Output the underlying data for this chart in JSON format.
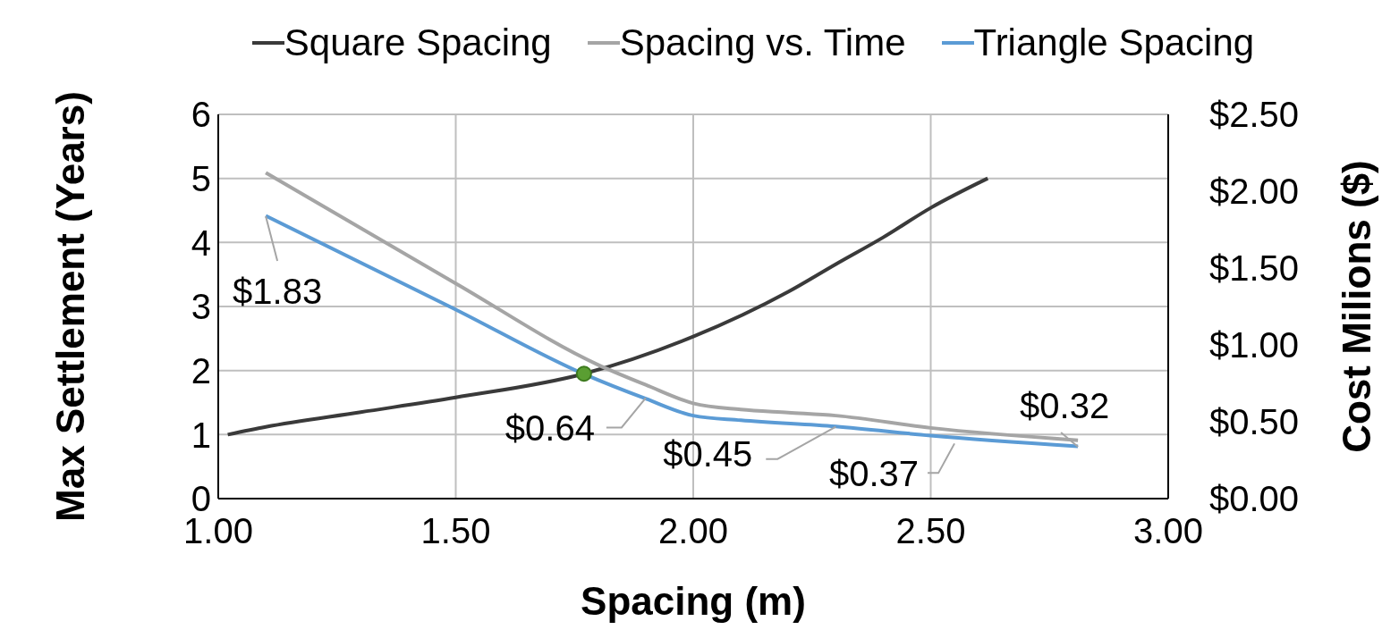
{
  "chart_data": {
    "type": "line",
    "xlabel": "Spacing (m)",
    "ylabel": "Max Settlement (Years)",
    "y2label": "Cost  Milions ($)",
    "series": [
      {
        "name": "Square Spacing",
        "color": "#3a3a3a",
        "x": [
          1.02,
          1.1,
          1.3,
          1.5,
          1.77,
          2.0,
          2.2,
          2.3,
          2.4,
          2.5,
          2.62
        ],
        "values": [
          1.0,
          1.12,
          1.35,
          1.58,
          1.95,
          2.53,
          3.23,
          3.66,
          4.08,
          4.54,
          5.0
        ]
      },
      {
        "name": "Spacing vs. Time",
        "color": "#a5a5a5",
        "axis": "y2",
        "x": [
          1.1,
          1.5,
          1.8,
          1.9,
          2.0,
          2.1,
          2.2,
          2.3,
          2.5,
          2.81
        ],
        "values": [
          2.12,
          1.4,
          0.87,
          0.74,
          0.62,
          0.58,
          0.56,
          0.54,
          0.46,
          0.38
        ]
      },
      {
        "name": "Triangle Spacing",
        "color": "#5b9bd5",
        "axis": "y2",
        "x": [
          1.1,
          1.5,
          1.77,
          1.9,
          2.0,
          2.1,
          2.3,
          2.5,
          2.81
        ],
        "values": [
          1.84,
          1.23,
          0.81,
          0.65,
          0.54,
          0.51,
          0.47,
          0.41,
          0.34
        ]
      },
      {
        "type": "scatter",
        "color": "#5a9e32",
        "x": [
          1.77
        ],
        "values": [
          1.95
        ]
      }
    ],
    "annotations": [
      {
        "text": "$1.83",
        "x": 1.1,
        "y": 4.41
      },
      {
        "text": "$0.64",
        "x": 1.9,
        "y": 1.57
      },
      {
        "text": "$0.45",
        "x": 2.3,
        "y": 1.12
      },
      {
        "text": "$0.37",
        "x": 2.55,
        "y": 0.86
      },
      {
        "text": "$0.32",
        "x": 2.81,
        "y": 0.81
      }
    ],
    "xlim": [
      1.0,
      3.0
    ],
    "xticks": [
      {
        "value": 1.0,
        "label": "1.00"
      },
      {
        "value": 1.5,
        "label": "1.50"
      },
      {
        "value": 2.0,
        "label": "2.00"
      },
      {
        "value": 2.5,
        "label": "2.50"
      },
      {
        "value": 3.0,
        "label": "3.00"
      }
    ],
    "ylim": [
      0,
      6
    ],
    "yticks": [
      0,
      1,
      2,
      3,
      4,
      5,
      6
    ],
    "y2lim": [
      0,
      2.5
    ],
    "y2ticks": [
      {
        "value": 0,
        "label": "$0.00"
      },
      {
        "value": 0.5,
        "label": "$0.50"
      },
      {
        "value": 1.0,
        "label": "$1.00"
      },
      {
        "value": 1.5,
        "label": "$1.50"
      },
      {
        "value": 2.0,
        "label": "$2.00"
      },
      {
        "value": 2.5,
        "label": "$2.50"
      }
    ],
    "grid": true,
    "legend": "top",
    "line_style": "solid"
  }
}
